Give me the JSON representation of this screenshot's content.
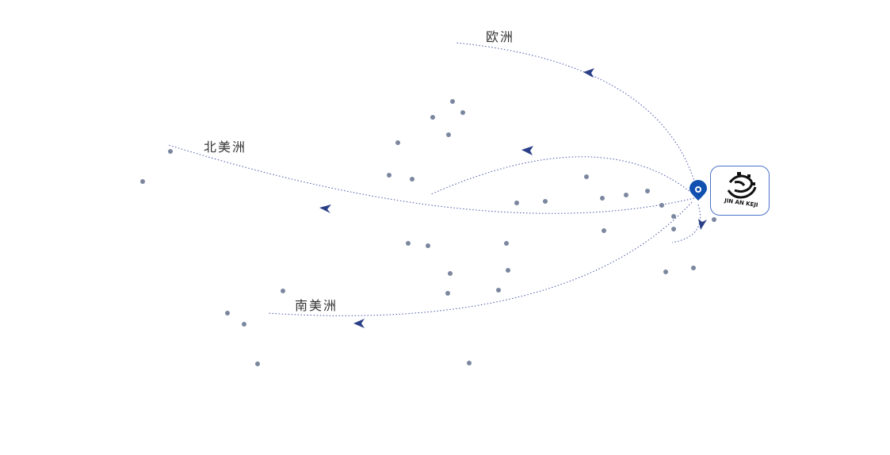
{
  "labels": {
    "europe": "欧洲",
    "north_america": "北美洲",
    "south_america": "南美洲"
  },
  "logo": {
    "text": "JIN AN KEJI"
  },
  "colors": {
    "route": "#4b56a8",
    "arrow": "#2a3f87",
    "dot": "#7b879f",
    "pin": "#1050b0",
    "logo_border": "#4a72c8"
  },
  "icons": {
    "origin": "map-pin-icon",
    "arrow": "arrowhead-icon"
  }
}
